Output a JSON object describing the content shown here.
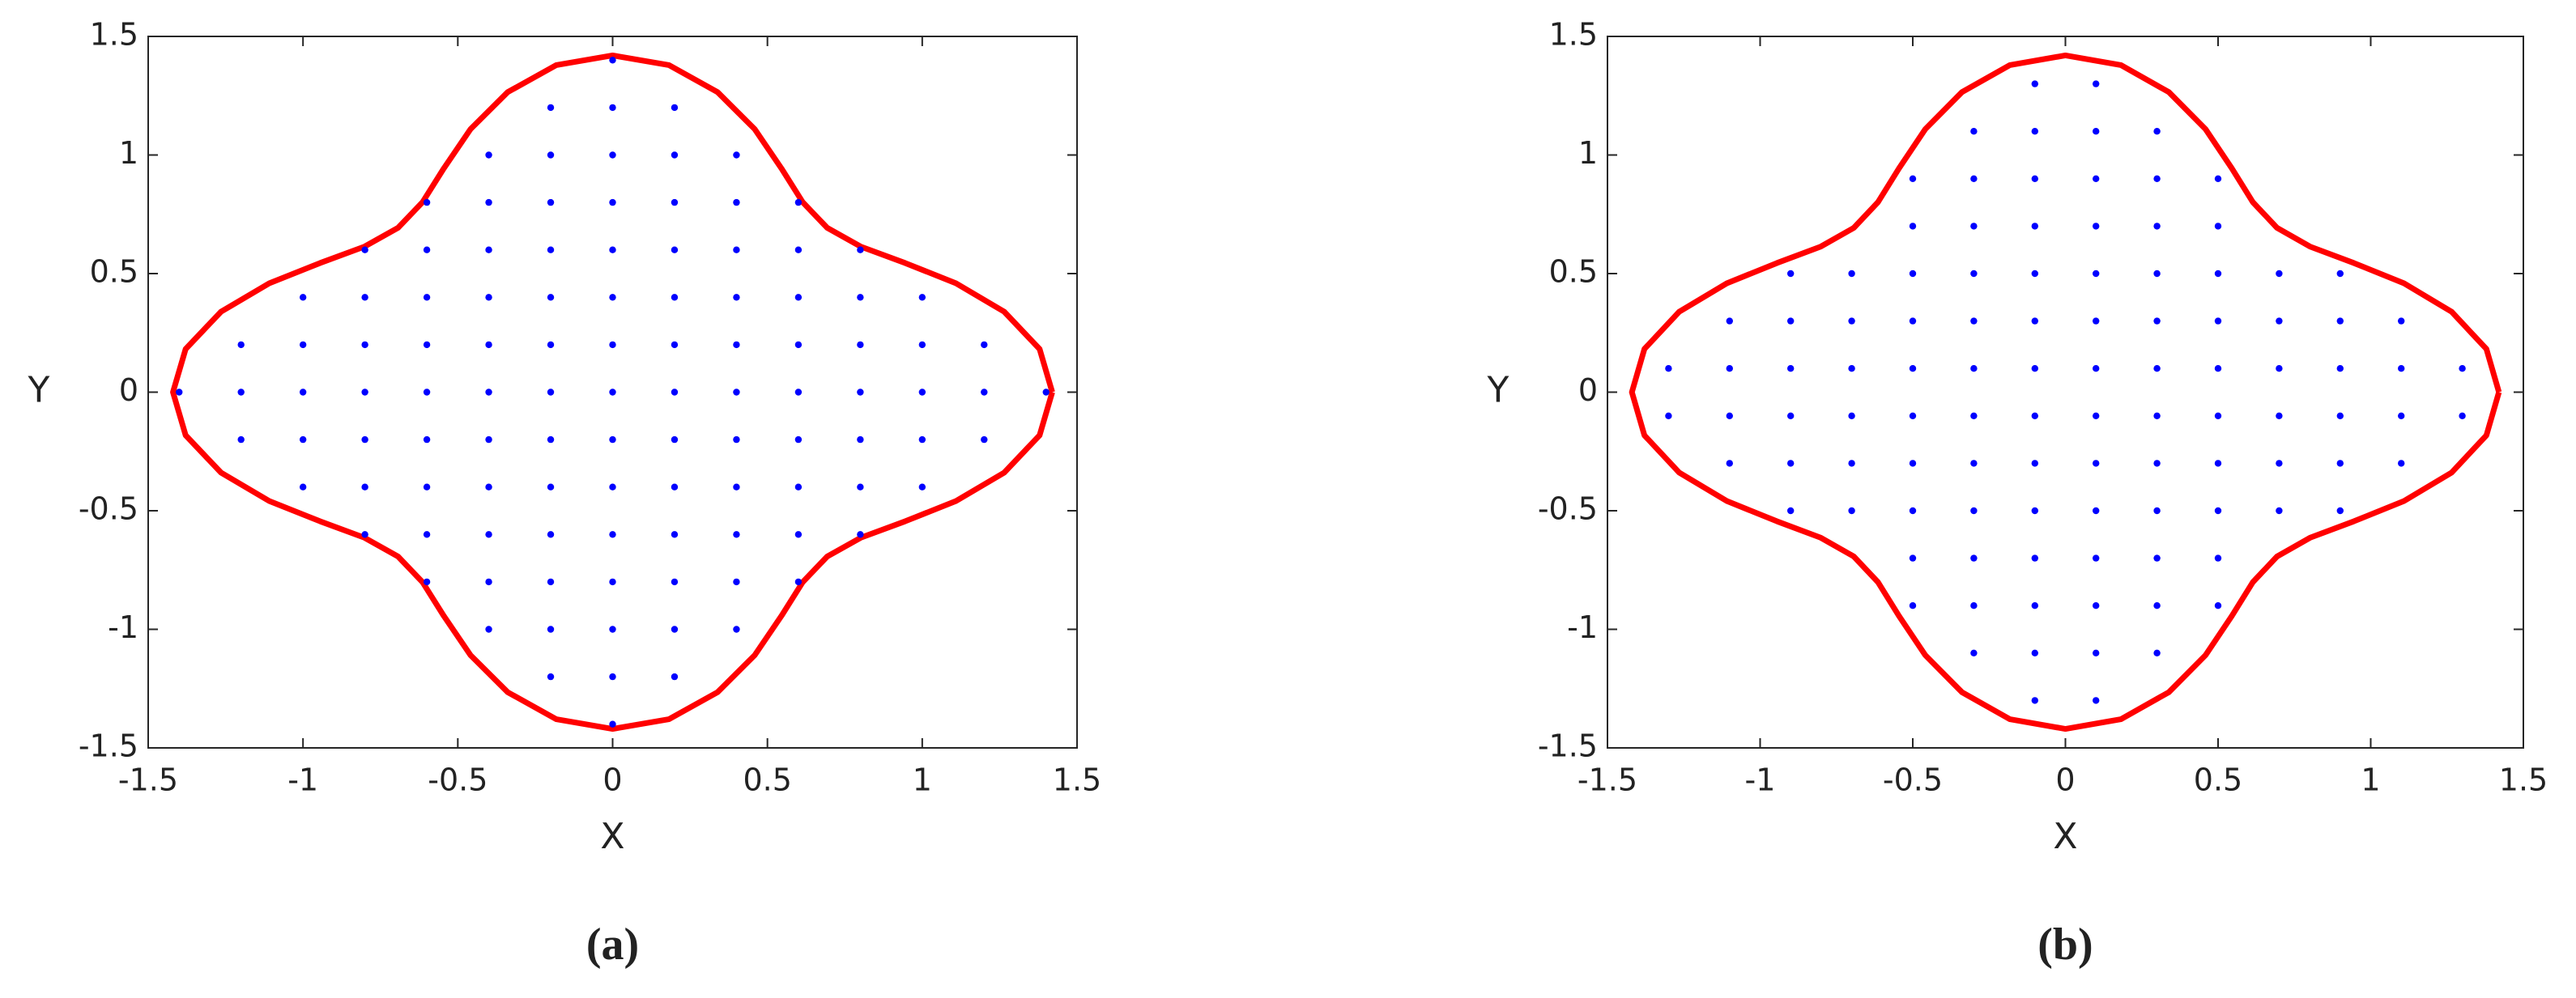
{
  "chart_data": [
    {
      "type": "scatter",
      "caption": "(a)",
      "xlabel": "X",
      "ylabel": "Y",
      "xlim": [
        -1.5,
        1.5
      ],
      "ylim": [
        -1.5,
        1.5
      ],
      "xticks": [
        -1.5,
        -1,
        -0.5,
        0,
        0.5,
        1,
        1.5
      ],
      "yticks": [
        -1.5,
        -1,
        -0.5,
        0,
        0.5,
        1,
        1.5
      ],
      "series": [
        {
          "mode": "line",
          "color": "#ff0000",
          "x": [
            1.42,
            1.379,
            1.265,
            1.109,
            0.944,
            0.801,
            0.693,
            0.614,
            0.545,
            0.459,
            0.339,
            0.182,
            0,
            -0.182,
            -0.339,
            -0.459,
            -0.545,
            -0.614,
            -0.693,
            -0.801,
            -0.944,
            -1.109,
            -1.265,
            -1.379,
            -1.42,
            -1.379,
            -1.265,
            -1.109,
            -0.944,
            -0.801,
            -0.693,
            -0.614,
            -0.545,
            -0.459,
            -0.339,
            -0.182,
            0,
            0.182,
            0.339,
            0.459,
            0.545,
            0.614,
            0.693,
            0.801,
            0.944,
            1.109,
            1.265,
            1.379,
            1.42
          ],
          "values": [
            0,
            0.182,
            0.339,
            0.459,
            0.545,
            0.614,
            0.693,
            0.801,
            0.944,
            1.109,
            1.265,
            1.379,
            1.42,
            1.379,
            1.265,
            1.109,
            0.944,
            0.801,
            0.693,
            0.614,
            0.545,
            0.459,
            0.339,
            0.182,
            0,
            -0.182,
            -0.339,
            -0.459,
            -0.545,
            -0.614,
            -0.693,
            -0.801,
            -0.944,
            -1.109,
            -1.265,
            -1.379,
            -1.42,
            -1.379,
            -1.265,
            -1.109,
            -0.944,
            -0.801,
            -0.693,
            -0.614,
            -0.545,
            -0.459,
            -0.339,
            -0.182,
            0
          ]
        },
        {
          "mode": "markers",
          "color": "#0000ff",
          "x": [
            -1.4,
            -1.2,
            -1.2,
            -1.2,
            -1,
            -1,
            -1,
            -1,
            -1,
            -0.8,
            -0.8,
            -0.8,
            -0.8,
            -0.8,
            -0.8,
            -0.8,
            -0.6,
            -0.6,
            -0.6,
            -0.6,
            -0.6,
            -0.6,
            -0.6,
            -0.6,
            -0.6,
            -0.4,
            -0.4,
            -0.4,
            -0.4,
            -0.4,
            -0.4,
            -0.4,
            -0.4,
            -0.4,
            -0.4,
            -0.4,
            -0.2,
            -0.2,
            -0.2,
            -0.2,
            -0.2,
            -0.2,
            -0.2,
            -0.2,
            -0.2,
            -0.2,
            -0.2,
            -0.2,
            -0.2,
            0,
            0,
            0,
            0,
            0,
            0,
            0,
            0,
            0,
            0,
            0,
            0,
            0,
            0,
            0,
            0.2,
            0.2,
            0.2,
            0.2,
            0.2,
            0.2,
            0.2,
            0.2,
            0.2,
            0.2,
            0.2,
            0.2,
            0.2,
            0.4,
            0.4,
            0.4,
            0.4,
            0.4,
            0.4,
            0.4,
            0.4,
            0.4,
            0.4,
            0.4,
            0.6,
            0.6,
            0.6,
            0.6,
            0.6,
            0.6,
            0.6,
            0.6,
            0.6,
            0.8,
            0.8,
            0.8,
            0.8,
            0.8,
            0.8,
            0.8,
            1,
            1,
            1,
            1,
            1,
            1.2,
            1.2,
            1.2,
            1.4
          ],
          "values": [
            0,
            -0.2,
            0,
            0.2,
            -0.4,
            -0.2,
            0,
            0.2,
            0.4,
            -0.6,
            -0.4,
            -0.2,
            0,
            0.2,
            0.4,
            0.6,
            -0.8,
            -0.6,
            -0.4,
            -0.2,
            0,
            0.2,
            0.4,
            0.6,
            0.8,
            -1,
            -0.8,
            -0.6,
            -0.4,
            -0.2,
            0,
            0.2,
            0.4,
            0.6,
            0.8,
            1,
            -1.2,
            -1,
            -0.8,
            -0.6,
            -0.4,
            -0.2,
            0,
            0.2,
            0.4,
            0.6,
            0.8,
            1,
            1.2,
            -1.4,
            -1.2,
            -1,
            -0.8,
            -0.6,
            -0.4,
            -0.2,
            0,
            0.2,
            0.4,
            0.6,
            0.8,
            1,
            1.2,
            1.4,
            -1.2,
            -1,
            -0.8,
            -0.6,
            -0.4,
            -0.2,
            0,
            0.2,
            0.4,
            0.6,
            0.8,
            1,
            1.2,
            -1,
            -0.8,
            -0.6,
            -0.4,
            -0.2,
            0,
            0.2,
            0.4,
            0.6,
            0.8,
            1,
            -0.8,
            -0.6,
            -0.4,
            -0.2,
            0,
            0.2,
            0.4,
            0.6,
            0.8,
            -0.6,
            -0.4,
            -0.2,
            0,
            0.2,
            0.4,
            0.6,
            -0.4,
            -0.2,
            0,
            0.2,
            0.4,
            -0.2,
            0,
            0.2,
            0
          ]
        }
      ]
    },
    {
      "type": "scatter",
      "caption": "(b)",
      "xlabel": "X",
      "ylabel": "Y",
      "xlim": [
        -1.5,
        1.5
      ],
      "ylim": [
        -1.5,
        1.5
      ],
      "xticks": [
        -1.5,
        -1,
        -0.5,
        0,
        0.5,
        1,
        1.5
      ],
      "yticks": [
        -1.5,
        -1,
        -0.5,
        0,
        0.5,
        1,
        1.5
      ],
      "series": [
        {
          "mode": "line",
          "color": "#ff0000",
          "x": [
            1.42,
            1.379,
            1.265,
            1.109,
            0.944,
            0.801,
            0.693,
            0.614,
            0.545,
            0.459,
            0.339,
            0.182,
            0,
            -0.182,
            -0.339,
            -0.459,
            -0.545,
            -0.614,
            -0.693,
            -0.801,
            -0.944,
            -1.109,
            -1.265,
            -1.379,
            -1.42,
            -1.379,
            -1.265,
            -1.109,
            -0.944,
            -0.801,
            -0.693,
            -0.614,
            -0.545,
            -0.459,
            -0.339,
            -0.182,
            0,
            0.182,
            0.339,
            0.459,
            0.545,
            0.614,
            0.693,
            0.801,
            0.944,
            1.109,
            1.265,
            1.379,
            1.42
          ],
          "values": [
            0,
            0.182,
            0.339,
            0.459,
            0.545,
            0.614,
            0.693,
            0.801,
            0.944,
            1.109,
            1.265,
            1.379,
            1.42,
            1.379,
            1.265,
            1.109,
            0.944,
            0.801,
            0.693,
            0.614,
            0.545,
            0.459,
            0.339,
            0.182,
            0,
            -0.182,
            -0.339,
            -0.459,
            -0.545,
            -0.614,
            -0.693,
            -0.801,
            -0.944,
            -1.109,
            -1.265,
            -1.379,
            -1.42,
            -1.379,
            -1.265,
            -1.109,
            -0.944,
            -0.801,
            -0.693,
            -0.614,
            -0.545,
            -0.459,
            -0.339,
            -0.182,
            0
          ]
        },
        {
          "mode": "markers",
          "color": "#0000ff",
          "x": [
            -1.3,
            -1.3,
            -1.1,
            -1.1,
            -1.1,
            -1.1,
            -0.9,
            -0.9,
            -0.9,
            -0.9,
            -0.9,
            -0.9,
            -0.7,
            -0.7,
            -0.7,
            -0.7,
            -0.7,
            -0.7,
            -0.5,
            -0.5,
            -0.5,
            -0.5,
            -0.5,
            -0.5,
            -0.5,
            -0.5,
            -0.5,
            -0.5,
            -0.3,
            -0.3,
            -0.3,
            -0.3,
            -0.3,
            -0.3,
            -0.3,
            -0.3,
            -0.3,
            -0.3,
            -0.3,
            -0.3,
            -0.1,
            -0.1,
            -0.1,
            -0.1,
            -0.1,
            -0.1,
            -0.1,
            -0.1,
            -0.1,
            -0.1,
            -0.1,
            -0.1,
            -0.1,
            -0.1,
            0.1,
            0.1,
            0.1,
            0.1,
            0.1,
            0.1,
            0.1,
            0.1,
            0.1,
            0.1,
            0.1,
            0.1,
            0.1,
            0.1,
            0.3,
            0.3,
            0.3,
            0.3,
            0.3,
            0.3,
            0.3,
            0.3,
            0.3,
            0.3,
            0.3,
            0.3,
            0.5,
            0.5,
            0.5,
            0.5,
            0.5,
            0.5,
            0.5,
            0.5,
            0.5,
            0.5,
            0.7,
            0.7,
            0.7,
            0.7,
            0.7,
            0.7,
            0.9,
            0.9,
            0.9,
            0.9,
            0.9,
            0.9,
            1.1,
            1.1,
            1.1,
            1.1,
            1.3,
            1.3
          ],
          "values": [
            -0.1,
            0.1,
            -0.3,
            -0.1,
            0.1,
            0.3,
            -0.5,
            -0.3,
            -0.1,
            0.1,
            0.3,
            0.5,
            -0.5,
            -0.3,
            -0.1,
            0.1,
            0.3,
            0.5,
            -0.9,
            -0.7,
            -0.5,
            -0.3,
            -0.1,
            0.1,
            0.3,
            0.5,
            0.7,
            0.9,
            -1.1,
            -0.9,
            -0.7,
            -0.5,
            -0.3,
            -0.1,
            0.1,
            0.3,
            0.5,
            0.7,
            0.9,
            1.1,
            -1.3,
            -1.1,
            -0.9,
            -0.7,
            -0.5,
            -0.3,
            -0.1,
            0.1,
            0.3,
            0.5,
            0.7,
            0.9,
            1.1,
            1.3,
            -1.3,
            -1.1,
            -0.9,
            -0.7,
            -0.5,
            -0.3,
            -0.1,
            0.1,
            0.3,
            0.5,
            0.7,
            0.9,
            1.1,
            1.3,
            -1.1,
            -0.9,
            -0.7,
            -0.5,
            -0.3,
            -0.1,
            0.1,
            0.3,
            0.5,
            0.7,
            0.9,
            1.1,
            -0.9,
            -0.7,
            -0.5,
            -0.3,
            -0.1,
            0.1,
            0.3,
            0.5,
            0.7,
            0.9,
            -0.5,
            -0.3,
            -0.1,
            0.1,
            0.3,
            0.5,
            -0.5,
            -0.3,
            -0.1,
            0.1,
            0.3,
            0.5,
            -0.3,
            -0.1,
            0.1,
            0.3,
            -0.1,
            0.1
          ]
        }
      ]
    }
  ]
}
